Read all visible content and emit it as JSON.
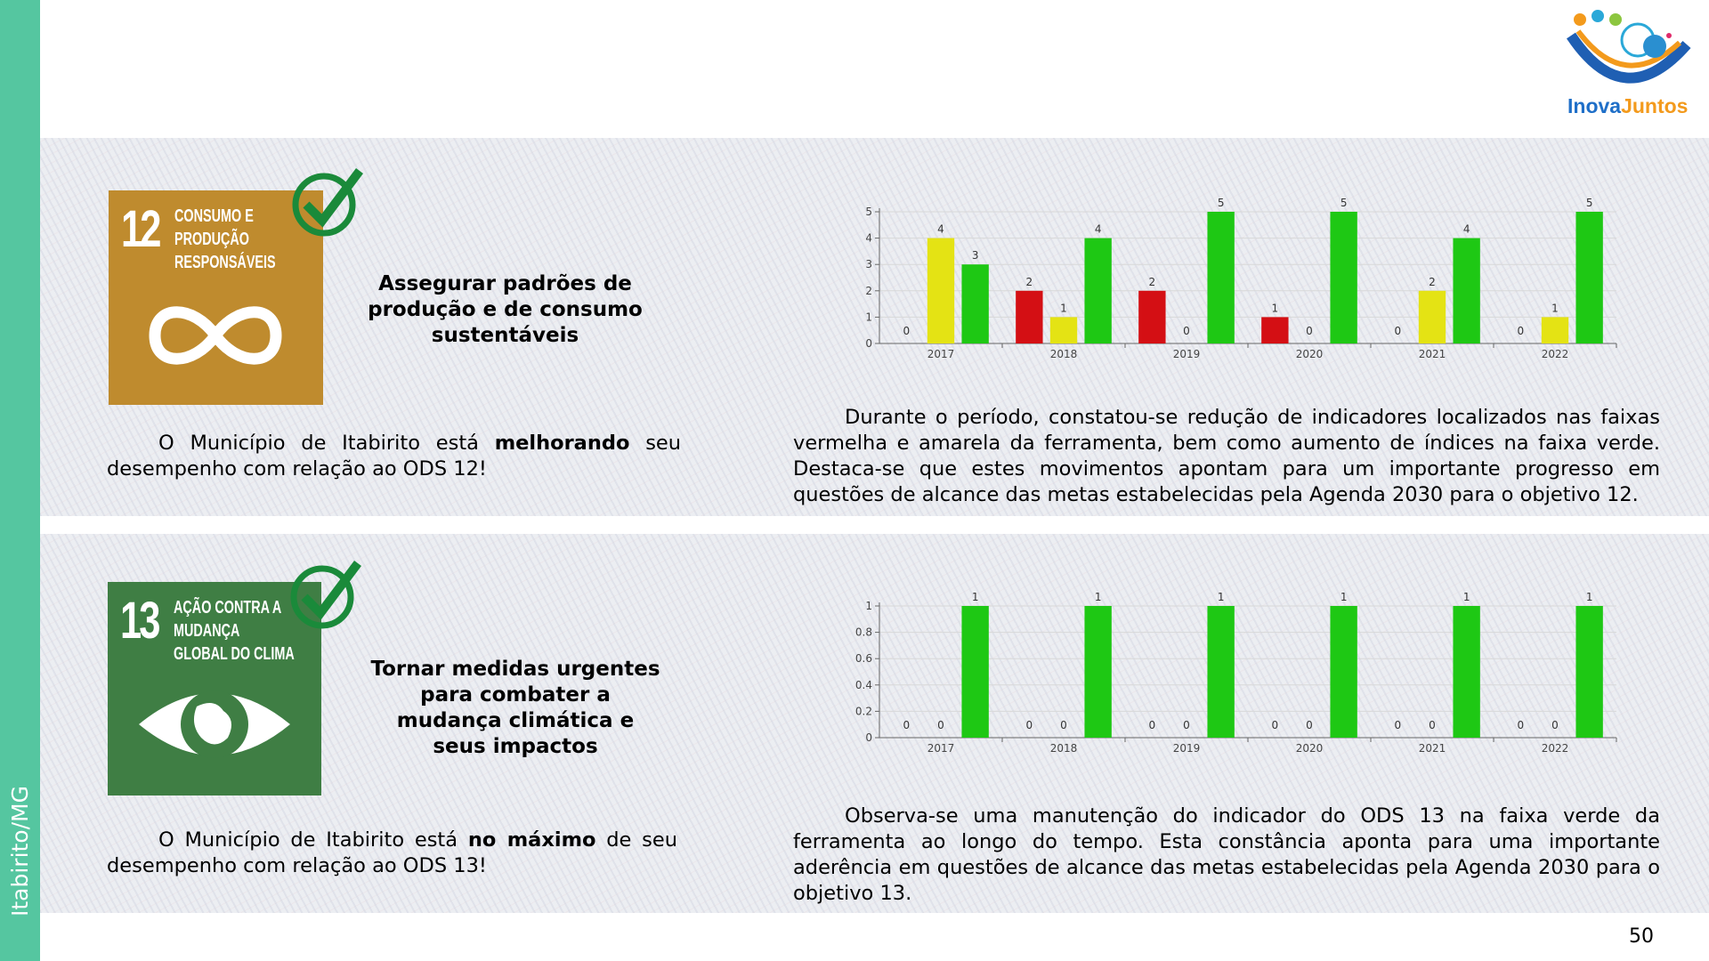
{
  "sidebar": {
    "text": "Itabirito/MG"
  },
  "logo": {
    "text_1": "Inova",
    "text_2": "Juntos"
  },
  "page_number": "50",
  "sections": [
    {
      "icon": {
        "number": "12",
        "label": "CONSUMO E PRODUÇÃO RESPONSÁVEIS"
      },
      "headline": "Assegurar padrões de produção e de consumo sustentáveis",
      "statement": {
        "before": "O Município de Itabirito está",
        "bold": "melhorando",
        "after": "seu desempenho com relação ao ODS 12!"
      },
      "paragraph": "Durante o período, constatou-se redução de indicadores localizados nas faixas vermelha e amarela da ferramenta, bem como aumento de índices na faixa verde. Destaca-se que estes movimentos apontam para um importante progresso em questões de alcance das metas estabelecidas pela Agenda 2030 para o objetivo 12.",
      "chart": {
        "type": "bar",
        "categories": [
          "2017",
          "2018",
          "2019",
          "2020",
          "2021",
          "2022"
        ],
        "series": [
          {
            "color": "#d40f14",
            "values": [
              0,
              2,
              2,
              1,
              0,
              0
            ]
          },
          {
            "color": "#e4e314",
            "values": [
              4,
              1,
              0,
              0,
              2,
              1
            ]
          },
          {
            "color": "#1ec814",
            "values": [
              3,
              4,
              5,
              5,
              4,
              5
            ]
          }
        ],
        "ylim": [
          0,
          5
        ],
        "yticks": [
          0,
          1,
          2,
          3,
          4,
          5
        ],
        "grid": true
      }
    },
    {
      "icon": {
        "number": "13",
        "label": "AÇÃO CONTRA A MUDANÇA GLOBAL DO CLIMA"
      },
      "headline": "Tornar medidas urgentes para combater a mudança climática e seus impactos",
      "statement": {
        "before": "O Município de Itabirito está",
        "bold": "no máximo",
        "after": "de seu desempenho com relação ao ODS 13!"
      },
      "paragraph": "Observa-se uma manutenção do indicador do ODS 13 na faixa verde da ferramenta ao longo do tempo. Esta constância aponta para uma importante aderência em questões de alcance das metas estabelecidas pela Agenda 2030 para o objetivo 13.",
      "chart": {
        "type": "bar",
        "categories": [
          "2017",
          "2018",
          "2019",
          "2020",
          "2021",
          "2022"
        ],
        "series": [
          {
            "color": "#d40f14",
            "values": [
              0,
              0,
              0,
              0,
              0,
              0
            ]
          },
          {
            "color": "#e4e314",
            "values": [
              0,
              0,
              0,
              0,
              0,
              0
            ]
          },
          {
            "color": "#1ec814",
            "values": [
              1,
              1,
              1,
              1,
              1,
              1
            ]
          }
        ],
        "ylim": [
          0,
          1
        ],
        "yticks": [
          0,
          0.2,
          0.4,
          0.6,
          0.8,
          1
        ],
        "grid": true
      }
    }
  ]
}
